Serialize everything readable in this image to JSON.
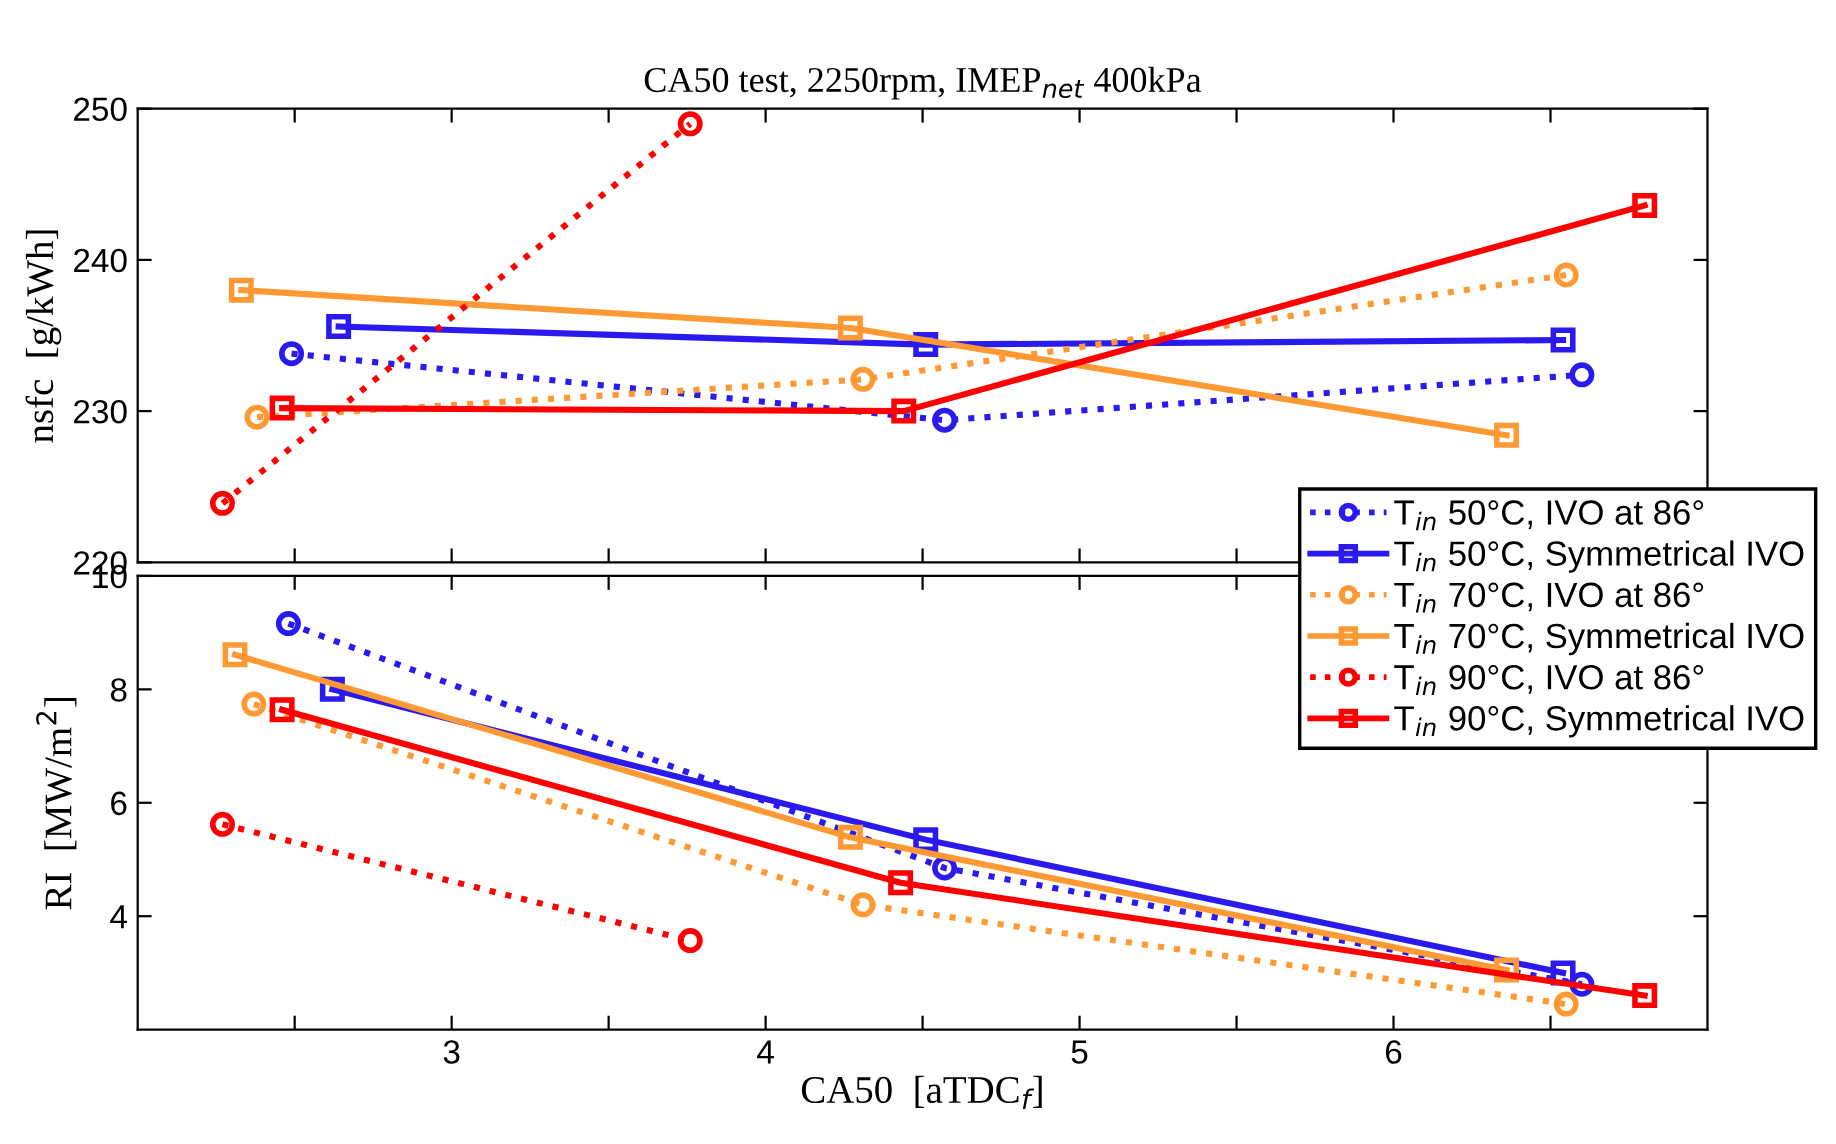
{
  "chart_data": [
    {
      "type": "line",
      "title": "CA50 test, 2250rpm, IMEP$_{net}$ 400kPa",
      "ylabel": "nsfc  [g/kWh]",
      "xlim": [
        2,
        7
      ],
      "xticks": [
        {
          "value": 2.5,
          "label": null
        },
        {
          "value": 3,
          "label": null
        },
        {
          "value": 3.5,
          "label": null
        },
        {
          "value": 4,
          "label": null
        },
        {
          "value": 4.5,
          "label": null
        },
        {
          "value": 5,
          "label": null
        },
        {
          "value": 5.5,
          "label": null
        },
        {
          "value": 6,
          "label": null
        },
        {
          "value": 6.5,
          "label": null
        }
      ],
      "ylim": [
        220,
        250
      ],
      "yticks": [
        220,
        230,
        240,
        250
      ],
      "tick_labels": "y",
      "grid": false,
      "legend": false,
      "series": [
        {
          "color": "#2a1af0",
          "line_style": "dotted",
          "marker": "circle",
          "x": [
            2.49,
            4.57,
            6.6
          ],
          "values": [
            233.8,
            229.4,
            232.4
          ]
        },
        {
          "color": "#2a1af0",
          "line_style": "solid",
          "marker": "square",
          "x": [
            2.64,
            4.51,
            6.54
          ],
          "values": [
            235.6,
            234.4,
            234.7
          ]
        },
        {
          "color": "#ff9933",
          "line_style": "dotted",
          "marker": "circle",
          "x": [
            2.38,
            4.31,
            6.55
          ],
          "values": [
            229.6,
            232.1,
            239.0
          ]
        },
        {
          "color": "#ff9933",
          "line_style": "solid",
          "marker": "square",
          "x": [
            2.33,
            4.27,
            6.36
          ],
          "values": [
            238.0,
            235.5,
            228.4
          ]
        },
        {
          "color": "#ff0000",
          "line_style": "dotted",
          "marker": "circle",
          "x": [
            2.27,
            3.76
          ],
          "values": [
            223.9,
            249.0
          ]
        },
        {
          "color": "#ff0000",
          "line_style": "solid",
          "marker": "square",
          "x": [
            2.46,
            4.44,
            6.8
          ],
          "values": [
            230.2,
            230.0,
            243.6
          ]
        }
      ]
    },
    {
      "type": "line",
      "xlabel": "CA50  [aTDC$_{f}$]",
      "ylabel": "RI  [MW/m$^{2}$]",
      "xlim": [
        2,
        7
      ],
      "xticks": [
        {
          "value": 2.5,
          "label": null
        },
        3,
        {
          "value": 3.5,
          "label": null
        },
        4,
        {
          "value": 4.5,
          "label": null
        },
        5,
        {
          "value": 5.5,
          "label": null
        },
        6,
        {
          "value": 6.5,
          "label": null
        }
      ],
      "ylim": [
        2,
        10
      ],
      "yticks": [
        4,
        6,
        8,
        10
      ],
      "grid": false,
      "legend": "right",
      "series": [
        {
          "name": "T$_{in}$ 50°C, IVO at 86°",
          "color": "#2a1af0",
          "line_style": "dotted",
          "marker": "circle",
          "x": [
            2.48,
            4.57,
            6.6
          ],
          "values": [
            9.16,
            4.85,
            2.8
          ]
        },
        {
          "name": "T$_{in}$ 50°C, Symmetrical IVO",
          "color": "#2a1af0",
          "line_style": "solid",
          "marker": "square",
          "x": [
            2.62,
            4.51,
            6.54
          ],
          "values": [
            8.0,
            5.35,
            3.0
          ]
        },
        {
          "name": "T$_{in}$ 70°C, IVO at 86°",
          "color": "#ff9933",
          "line_style": "dotted",
          "marker": "circle",
          "x": [
            2.37,
            4.31,
            6.55
          ],
          "values": [
            7.74,
            4.2,
            2.45
          ]
        },
        {
          "name": "T$_{in}$ 70°C, Symmetrical IVO",
          "color": "#ff9933",
          "line_style": "solid",
          "marker": "square",
          "x": [
            2.31,
            4.27,
            6.36
          ],
          "values": [
            8.61,
            5.39,
            3.05
          ]
        },
        {
          "name": "T$_{in}$ 90°C, IVO at 86°",
          "color": "#ff0000",
          "line_style": "dotted",
          "marker": "circle",
          "x": [
            2.27,
            3.76
          ],
          "values": [
            5.62,
            3.57
          ]
        },
        {
          "name": "T$_{in}$ 90°C, Symmetrical IVO",
          "color": "#ff0000",
          "line_style": "solid",
          "marker": "square",
          "x": [
            2.46,
            4.43,
            6.8
          ],
          "values": [
            7.64,
            4.59,
            2.6
          ]
        }
      ]
    }
  ]
}
